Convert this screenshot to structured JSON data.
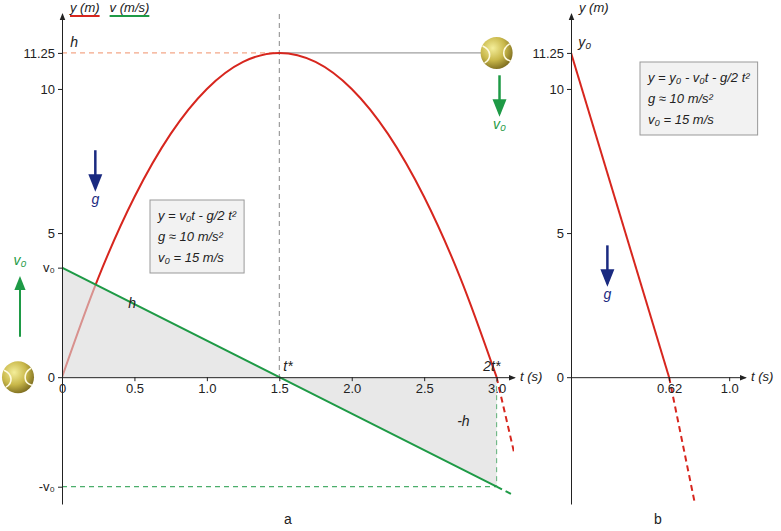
{
  "chart_data": [
    {
      "type": "line",
      "title": "a",
      "x_label": "t (s)",
      "legend": "top-left",
      "xlim": [
        0,
        3.12
      ],
      "ylim": [
        -4.4,
        12.6
      ],
      "xticks": [
        0,
        0.5,
        {
          "value": 1,
          "label": "1.0"
        },
        1.5,
        {
          "value": 2,
          "label": "2.0"
        },
        2.5,
        {
          "value": 3,
          "label": "3.0"
        }
      ],
      "yticks": [
        {
          "value": -3.8,
          "label": "-v₀"
        },
        0,
        {
          "value": 3.8,
          "label": "v₀"
        },
        5,
        10,
        11.25
      ],
      "series": [
        {
          "name": "y (m)",
          "color": "#d7261e",
          "x": [
            0,
            0.25,
            0.5,
            0.75,
            1,
            1.25,
            1.5,
            1.75,
            2,
            2.25,
            2.5,
            2.75,
            3
          ],
          "values": [
            0,
            3.44,
            6.25,
            8.44,
            10,
            10.94,
            11.25,
            10.94,
            10,
            8.44,
            6.25,
            3.44,
            0
          ]
        },
        {
          "color": "#d7261e",
          "line_style": "dashed",
          "x": [
            3,
            3.12
          ],
          "values": [
            0,
            -2.6
          ]
        },
        {
          "name": "v (m/s)",
          "color": "#1e9a46",
          "type": "area",
          "x": [
            0,
            1.5,
            3
          ],
          "values": [
            3.8,
            0,
            -3.8
          ]
        },
        {
          "color": "#1e9a46",
          "line_style": "dashed",
          "x": [
            3,
            3.12
          ],
          "values": [
            -3.8,
            -4.1
          ]
        }
      ],
      "annotations": [
        {
          "text": "h",
          "x": 0.03,
          "y": 11.25
        },
        {
          "text": "h",
          "x": 0.43,
          "y": 2.2
        },
        {
          "text": "-h",
          "x": 2.7,
          "y": -1.9
        },
        {
          "text": "t*",
          "x": 1.5,
          "y": 0
        },
        {
          "text": "2t*",
          "x": 2.88,
          "y": 0
        },
        {
          "text": "v₀",
          "x": -0.29,
          "y": 3.9,
          "color": "#1e9a46",
          "marker": "arrow-up"
        },
        {
          "text": "v₀",
          "x": 3.02,
          "y": 8.6,
          "color": "#1e9a46",
          "marker": "arrow-down"
        },
        {
          "text": "g",
          "x": 0.23,
          "y": 6.0,
          "color": "#1a2a80",
          "marker": "arrow-down"
        }
      ],
      "formula": [
        "y = v₀t - g/2 t²",
        "g ≈ 10 m/s²",
        "v₀ = 15 m/s"
      ]
    },
    {
      "type": "line",
      "title": "b",
      "x_label": "t (s)",
      "y_label": "y (m)",
      "xlim": [
        0,
        1.1
      ],
      "ylim": [
        -4.4,
        12.6
      ],
      "xticks": [
        0.62,
        {
          "value": 1,
          "label": "1.0"
        }
      ],
      "yticks": [
        0,
        5,
        10,
        11.25
      ],
      "series": [
        {
          "color": "#d7261e",
          "x": [
            0,
            0.62
          ],
          "values": [
            11.25,
            0
          ]
        },
        {
          "color": "#d7261e",
          "line_style": "dashed",
          "x": [
            0.62,
            0.78
          ],
          "values": [
            0,
            -4.3
          ]
        }
      ],
      "annotations": [
        {
          "text": "y₀",
          "x": 0.02,
          "y": 11.25
        },
        {
          "text": "g",
          "x": 0.23,
          "y": 2.7,
          "color": "#1a2a80",
          "marker": "arrow-down"
        }
      ],
      "formula": [
        "y = y₀ - v₀t - g/2 t²",
        "g ≈ 10 m/s²",
        "v₀ = 15 m/s"
      ]
    }
  ]
}
